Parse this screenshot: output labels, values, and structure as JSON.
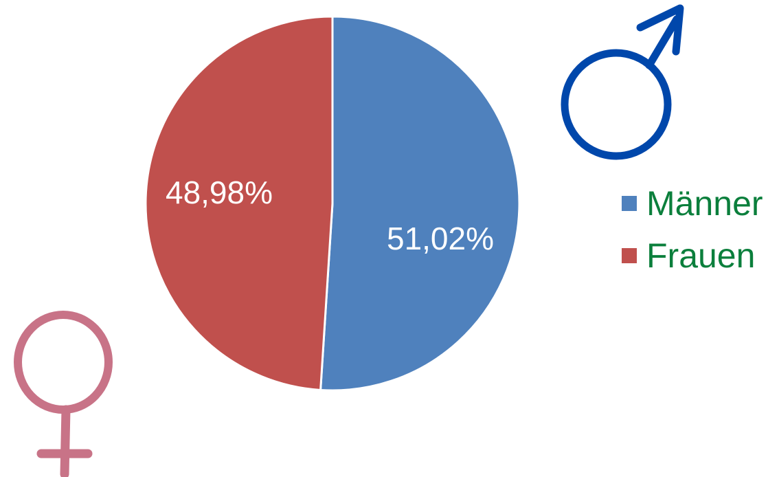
{
  "chart_data": {
    "type": "pie",
    "series": [
      {
        "name": "Männer",
        "value": 51.02,
        "label": "51,02%",
        "color": "#4f81bd"
      },
      {
        "name": "Frauen",
        "value": 48.98,
        "label": "48,98%",
        "color": "#c0504d"
      }
    ],
    "start_angle": "12 o'clock",
    "direction": "clockwise",
    "legend_position": "right",
    "legend_text_color": "#0b7f3c"
  },
  "decorations": {
    "male_symbol": {
      "icon": "male-symbol-icon",
      "color": "#0047ab"
    },
    "female_symbol": {
      "icon": "female-symbol-icon",
      "color": "#c87387"
    }
  }
}
